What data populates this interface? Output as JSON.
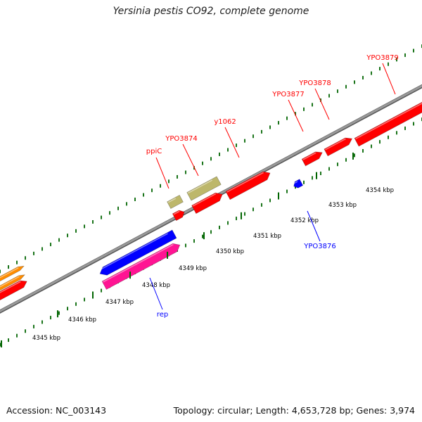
{
  "title": "Yersinia pestis CO92, complete genome",
  "footer": {
    "accession": "Accession: NC_003143",
    "summary": "Topology: circular; Length: 4,653,728 bp; Genes: 3,974"
  },
  "colors": {
    "forward_cds": "#ff0000",
    "reverse_cds": "#0000ff",
    "other_gene": "#bdb76b",
    "rna": "#ff1493",
    "backbone": "#999999",
    "tick": "#006400"
  },
  "scale": {
    "ticks": [
      {
        "label": "4345 kbp"
      },
      {
        "label": "4346 kbp"
      },
      {
        "label": "4347 kbp"
      },
      {
        "label": "4348 kbp"
      },
      {
        "label": "4349 kbp"
      },
      {
        "label": "4350 kbp"
      },
      {
        "label": "4351 kbp"
      },
      {
        "label": "4352 kbp"
      },
      {
        "label": "4353 kbp"
      },
      {
        "label": "4354 kbp"
      }
    ]
  },
  "gene_labels": [
    {
      "label": "ppiC",
      "strand": "forward"
    },
    {
      "label": "YPO3874",
      "strand": "forward"
    },
    {
      "label": "y1062",
      "strand": "forward"
    },
    {
      "label": "YPO3877",
      "strand": "forward"
    },
    {
      "label": "YPO3878",
      "strand": "forward"
    },
    {
      "label": "YPO3879",
      "strand": "forward"
    },
    {
      "label": "YPO3876",
      "strand": "reverse"
    },
    {
      "label": "rep",
      "strand": "reverse"
    }
  ]
}
